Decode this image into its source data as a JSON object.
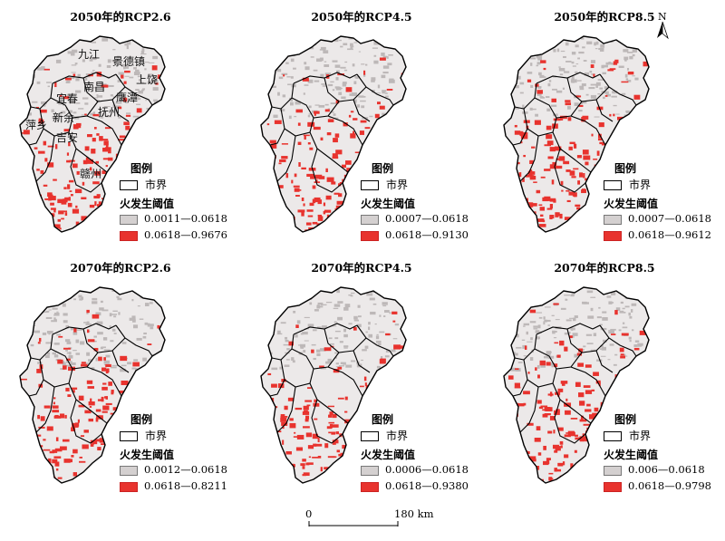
{
  "panels": [
    {
      "title": "2050年的RCP2.6",
      "legend": {
        "title": "图例",
        "boundary": "市界",
        "subtitle": "火发生阈值",
        "low": "0.0011—0.0618",
        "high": "0.0618—0.9676"
      }
    },
    {
      "title": "2050年的RCP4.5",
      "legend": {
        "title": "图例",
        "boundary": "市界",
        "subtitle": "火发生阈值",
        "low": "0.0007—0.0618",
        "high": "0.0618—0.9130"
      }
    },
    {
      "title": "2050年的RCP8.5",
      "legend": {
        "title": "图例",
        "boundary": "市界",
        "subtitle": "火发生阈值",
        "low": "0.0007—0.0618",
        "high": "0.0618—0.9612"
      }
    },
    {
      "title": "2070年的RCP2.6",
      "legend": {
        "title": "图例",
        "boundary": "市界",
        "subtitle": "火发生阈值",
        "low": "0.0012—0.0618",
        "high": "0.0618—0.8211"
      }
    },
    {
      "title": "2070年的RCP4.5",
      "legend": {
        "title": "图例",
        "boundary": "市界",
        "subtitle": "火发生阈值",
        "low": "0.0006—0.0618",
        "high": "0.0618—0.9380"
      }
    },
    {
      "title": "2070年的RCP8.5",
      "legend": {
        "title": "图例",
        "boundary": "市界",
        "subtitle": "火发生阈值",
        "low": "0.006—0.0618",
        "high": "0.0618—0.9798"
      }
    }
  ],
  "cities": [
    "九江",
    "景德镇",
    "南昌",
    "上饶",
    "宜春",
    "鹰潭",
    "新余",
    "抚州",
    "萍乡",
    "吉安",
    "赣州"
  ],
  "north_arrow": {
    "label": "N",
    "icon": "north-arrow-icon"
  },
  "scale_bar": {
    "start": "0",
    "end": "180 km"
  },
  "colors": {
    "high_risk": "#e8332e",
    "low_risk": "#d4d0d0",
    "boundary": "#000000"
  }
}
